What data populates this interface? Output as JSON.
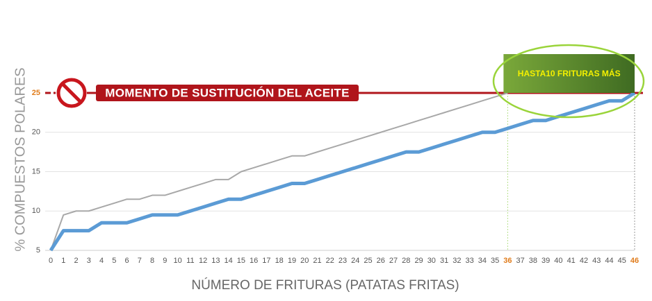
{
  "chart_data": {
    "type": "line",
    "ylabel": "% COMPUESTOS POLARES",
    "xlabel": "NÚMERO DE FRITURAS (PATATAS FRITAS)",
    "annotations": {
      "limit": "MOMENTO DE SUSTITUCIÓN DEL ACEITE",
      "box": "HASTA10 FRITURAS MÁS"
    },
    "limit_value": 25,
    "highlight_x": [
      36,
      46
    ],
    "highlight_color": "#e07b1a",
    "x": [
      0,
      1,
      2,
      3,
      4,
      5,
      6,
      7,
      8,
      9,
      10,
      11,
      12,
      13,
      14,
      15,
      16,
      17,
      18,
      19,
      20,
      21,
      22,
      23,
      24,
      25,
      26,
      27,
      28,
      29,
      30,
      31,
      32,
      33,
      34,
      35,
      36,
      37,
      38,
      39,
      40,
      41,
      42,
      43,
      44,
      45,
      46
    ],
    "series": [
      {
        "color": "#a8a8a8",
        "values": [
          5,
          9.5,
          10,
          10,
          10.5,
          11,
          11.5,
          11.5,
          12,
          12,
          12.5,
          13,
          13.5,
          14,
          14,
          15,
          15.5,
          16,
          16.5,
          17,
          17,
          17.5,
          18,
          18.5,
          19,
          19.5,
          20,
          20.5,
          21,
          21.5,
          22,
          22.5,
          23,
          23.5,
          24,
          24.5,
          25,
          null,
          null,
          null,
          null,
          null,
          null,
          null,
          null,
          null,
          null
        ]
      },
      {
        "color": "#5b9bd5",
        "values": [
          5,
          7.5,
          7.5,
          7.5,
          8.5,
          8.5,
          8.5,
          9,
          9.5,
          9.5,
          9.5,
          10,
          10.5,
          11,
          11.5,
          11.5,
          12,
          12.5,
          13,
          13.5,
          13.5,
          14,
          14.5,
          15,
          15.5,
          16,
          16.5,
          17,
          17.5,
          17.5,
          18,
          18.5,
          19,
          19.5,
          20,
          20,
          20.5,
          21,
          21.5,
          21.5,
          22,
          22.5,
          23,
          23.5,
          24,
          24,
          25
        ]
      }
    ],
    "xlim": [
      0,
      46
    ],
    "ylim": [
      5,
      25
    ],
    "yticks": [
      5,
      10,
      15,
      20,
      25
    ],
    "grid": true
  }
}
